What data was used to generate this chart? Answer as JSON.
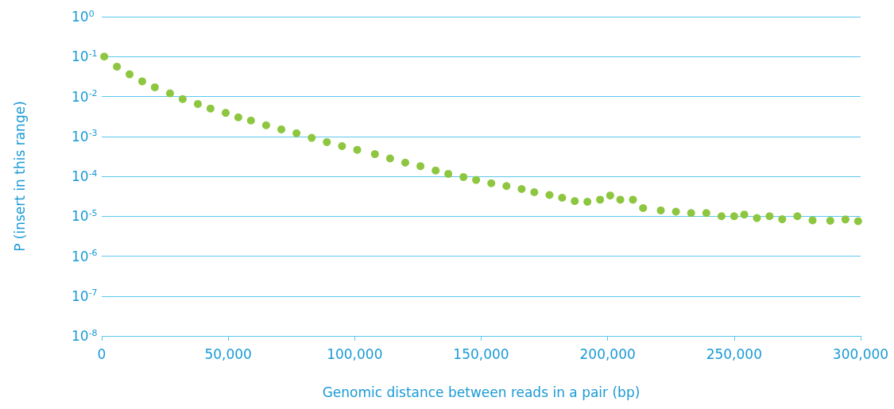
{
  "chart_data": {
    "type": "scatter",
    "xlabel": "Genomic distance between reads in a pair (bp)",
    "ylabel": "P (insert in this range)",
    "x": [
      1000,
      6000,
      11000,
      16000,
      21000,
      27000,
      32000,
      38000,
      43000,
      49000,
      54000,
      59000,
      65000,
      71000,
      77000,
      83000,
      89000,
      95000,
      101000,
      108000,
      114000,
      120000,
      126000,
      132000,
      137000,
      143000,
      148000,
      154000,
      160000,
      166000,
      171000,
      177000,
      182000,
      187000,
      192000,
      197000,
      201000,
      205000,
      210000,
      214000,
      221000,
      227000,
      233000,
      239000,
      245000,
      250000,
      254000,
      259000,
      264000,
      269000,
      275000,
      281000,
      288000,
      294000,
      299000
    ],
    "series": [
      {
        "color": "#8dc63f",
        "values": [
          0.1,
          0.056,
          0.036,
          0.024,
          0.017,
          0.012,
          0.0086,
          0.0065,
          0.005,
          0.0039,
          0.003,
          0.0025,
          0.0019,
          0.0015,
          0.0012,
          0.00092,
          0.00072,
          0.00057,
          0.00046,
          0.00036,
          0.00028,
          0.00022,
          0.00018,
          0.00014,
          0.000115,
          9.6e-05,
          8.1e-05,
          6.7e-05,
          5.7e-05,
          4.8e-05,
          4e-05,
          3.4e-05,
          2.9e-05,
          2.4e-05,
          2.3e-05,
          2.6e-05,
          3.3e-05,
          2.6e-05,
          2.6e-05,
          1.6e-05,
          1.4e-05,
          1.3e-05,
          1.2e-05,
          1.2e-05,
          1e-05,
          1e-05,
          1.1e-05,
          9e-06,
          1e-05,
          8.4e-06,
          1e-05,
          7.9e-06,
          7.7e-06,
          8.3e-06,
          7.5e-06
        ]
      }
    ],
    "xlim": [
      0,
      300000
    ],
    "ylim": [
      1e-08,
      1
    ],
    "log": "y",
    "grid": "y",
    "marker": "circle",
    "xticks": [
      0,
      {
        "value": 50000,
        "label": "50,000"
      },
      {
        "value": 100000,
        "label": "100,000"
      },
      {
        "value": 150000,
        "label": "150,000"
      },
      {
        "value": 200000,
        "label": "200,000"
      },
      {
        "value": 250000,
        "label": "250,000"
      },
      {
        "value": 300000,
        "label": "300,000"
      }
    ],
    "yticks": [
      {
        "value": 1e-08,
        "label": "10$^{-8}$"
      },
      {
        "value": 1e-07,
        "label": "10$^{-7}$"
      },
      {
        "value": 1e-06,
        "label": "10$^{-6}$"
      },
      {
        "value": 1e-05,
        "label": "10$^{-5}$"
      },
      {
        "value": 0.0001,
        "label": "10$^{-4}$"
      },
      {
        "value": 0.001,
        "label": "10$^{-3}$"
      },
      {
        "value": 0.01,
        "label": "10$^{-2}$"
      },
      {
        "value": 0.1,
        "label": "10$^{-1}$"
      },
      {
        "value": 1,
        "label": "10$^{0}$"
      }
    ]
  }
}
